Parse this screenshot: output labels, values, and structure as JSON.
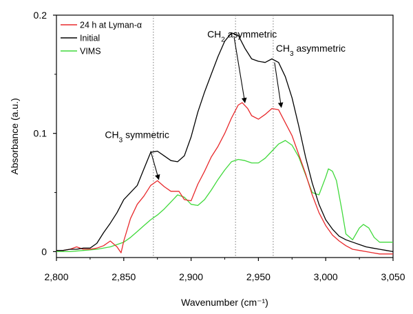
{
  "chart_data": {
    "type": "line",
    "xlabel": "Wavenumber (cm⁻¹)",
    "ylabel": "Absorbance (a.u.)",
    "xlim": [
      2800,
      3050
    ],
    "ylim": [
      -0.005,
      0.2
    ],
    "xticks": [
      2800,
      2850,
      2900,
      2950,
      3000,
      3050
    ],
    "xtick_labels": [
      "2,800",
      "2,850",
      "2,900",
      "2,950",
      "3,000",
      "3,050"
    ],
    "yticks": [
      0,
      0.1,
      0.2
    ],
    "ytick_labels": [
      "0",
      "0.1",
      "0.2"
    ],
    "grid": false,
    "legend_position": "top-left",
    "reference_lines_x": [
      2872,
      2933,
      2961
    ],
    "series": [
      {
        "name": "24 h at Lyman-α",
        "color": "#e8282b",
        "x": [
          2800,
          2805,
          2810,
          2815,
          2820,
          2825,
          2830,
          2835,
          2840,
          2845,
          2848,
          2850,
          2855,
          2860,
          2865,
          2870,
          2875,
          2880,
          2885,
          2888,
          2891,
          2895,
          2900,
          2905,
          2910,
          2915,
          2920,
          2925,
          2930,
          2935,
          2938,
          2942,
          2945,
          2950,
          2955,
          2960,
          2965,
          2970,
          2975,
          2980,
          2985,
          2990,
          2995,
          3000,
          3005,
          3010,
          3015,
          3020,
          3025,
          3030,
          3035,
          3040,
          3045,
          3050
        ],
        "y": [
          0.001,
          0.001,
          0.002,
          0.004,
          0.002,
          0.002,
          0.003,
          0.005,
          0.009,
          0.004,
          -0.001,
          0.009,
          0.028,
          0.04,
          0.047,
          0.056,
          0.06,
          0.055,
          0.051,
          0.051,
          0.051,
          0.044,
          0.043,
          0.057,
          0.068,
          0.08,
          0.089,
          0.1,
          0.113,
          0.124,
          0.126,
          0.121,
          0.115,
          0.112,
          0.116,
          0.121,
          0.12,
          0.109,
          0.098,
          0.082,
          0.066,
          0.048,
          0.033,
          0.022,
          0.014,
          0.009,
          0.005,
          0.002,
          0.001,
          0.0,
          -0.001,
          -0.002,
          -0.002,
          -0.002
        ]
      },
      {
        "name": "Initial",
        "color": "#000000",
        "x": [
          2800,
          2805,
          2810,
          2815,
          2820,
          2825,
          2830,
          2835,
          2840,
          2845,
          2850,
          2855,
          2860,
          2865,
          2870,
          2875,
          2880,
          2885,
          2890,
          2895,
          2900,
          2905,
          2910,
          2915,
          2920,
          2925,
          2930,
          2935,
          2940,
          2945,
          2950,
          2955,
          2960,
          2965,
          2970,
          2975,
          2980,
          2985,
          2990,
          2995,
          3000,
          3005,
          3010,
          3015,
          3020,
          3025,
          3030,
          3035,
          3040,
          3045,
          3050
        ],
        "y": [
          0.001,
          0.001,
          0.002,
          0.002,
          0.003,
          0.003,
          0.007,
          0.016,
          0.024,
          0.033,
          0.044,
          0.05,
          0.056,
          0.07,
          0.084,
          0.085,
          0.081,
          0.077,
          0.076,
          0.081,
          0.097,
          0.118,
          0.135,
          0.15,
          0.165,
          0.178,
          0.185,
          0.183,
          0.172,
          0.163,
          0.161,
          0.16,
          0.163,
          0.16,
          0.148,
          0.13,
          0.106,
          0.08,
          0.058,
          0.04,
          0.027,
          0.019,
          0.013,
          0.01,
          0.008,
          0.006,
          0.004,
          0.003,
          0.002,
          0.001,
          0.0
        ]
      },
      {
        "name": "VIMS",
        "color": "#3fd93a",
        "x": [
          2800,
          2810,
          2820,
          2830,
          2840,
          2850,
          2855,
          2860,
          2865,
          2870,
          2875,
          2880,
          2885,
          2890,
          2895,
          2900,
          2905,
          2910,
          2915,
          2920,
          2925,
          2930,
          2935,
          2940,
          2945,
          2950,
          2955,
          2960,
          2965,
          2970,
          2975,
          2980,
          2985,
          2990,
          2995,
          3000,
          3002,
          3005,
          3008,
          3012,
          3015,
          3020,
          3025,
          3028,
          3032,
          3036,
          3040,
          3045,
          3050
        ],
        "y": [
          0.0,
          0.0,
          0.001,
          0.002,
          0.004,
          0.008,
          0.012,
          0.017,
          0.022,
          0.027,
          0.031,
          0.036,
          0.042,
          0.048,
          0.046,
          0.04,
          0.039,
          0.044,
          0.052,
          0.061,
          0.069,
          0.076,
          0.078,
          0.077,
          0.075,
          0.075,
          0.079,
          0.085,
          0.091,
          0.094,
          0.09,
          0.08,
          0.065,
          0.05,
          0.048,
          0.063,
          0.07,
          0.068,
          0.06,
          0.035,
          0.015,
          0.01,
          0.02,
          0.023,
          0.02,
          0.012,
          0.008,
          0.008,
          0.008
        ]
      }
    ],
    "annotations": [
      {
        "label_main": "CH",
        "label_sub": "3",
        "label_rest": " symmetric",
        "at": [
          2836,
          0.096
        ],
        "arrow_from": [
          2870,
          0.085
        ],
        "arrow_to": [
          2876,
          0.061
        ]
      },
      {
        "label_main": "CH",
        "label_sub": "2",
        "label_rest": " asymmetric",
        "at": [
          2912,
          0.181
        ],
        "arrow_from": [
          2932,
          0.181
        ],
        "arrow_to": [
          2940,
          0.126
        ]
      },
      {
        "label_main": "CH",
        "label_sub": "3",
        "label_rest": " asymmetric",
        "at": [
          2963,
          0.169
        ],
        "arrow_from": [
          2962,
          0.16
        ],
        "arrow_to": [
          2967,
          0.122
        ]
      }
    ]
  }
}
